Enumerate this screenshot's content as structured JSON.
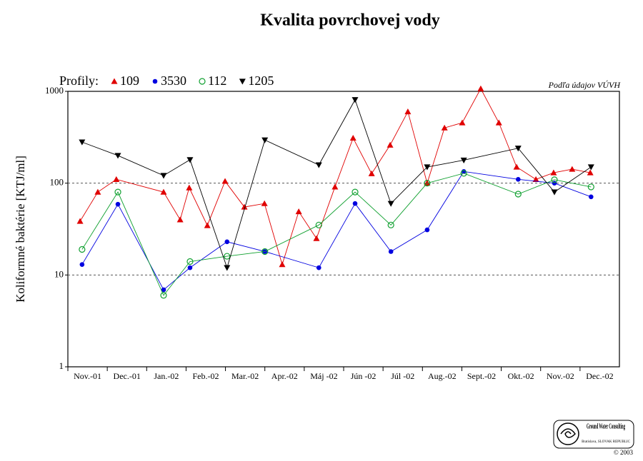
{
  "chart_data": {
    "type": "line",
    "title": "Kvalita povrchovej vody",
    "y_label": "Koliformné baktérie [KTJ/ml]",
    "legend_title": "Profily:",
    "source_note": "Podľa údajov VÚVH",
    "logo": {
      "name": "Ground Water Consulting",
      "place": "Bratislava, SLOVAK REPUBLIC",
      "copyright": "© 2003"
    },
    "categories": [
      "Nov.-01",
      "Dec.-01",
      "Jan.-02",
      "Feb.-02",
      "Mar.-02",
      "Apr.-02",
      "Máj -02",
      "Jún -02",
      "Júl -02",
      "Aug.-02",
      "Sept.-02",
      "Okt.-02",
      "Nov.-02",
      "Dec.-02"
    ],
    "xlim": [
      0,
      14
    ],
    "ylim": [
      1,
      1000
    ],
    "yticks": [
      1,
      10,
      100,
      1000
    ],
    "log_y": true,
    "grid": true,
    "series": [
      {
        "name": "109",
        "color": "#e00000",
        "marker": "triangle-up",
        "x": [
          0.31,
          0.76,
          1.23,
          2.43,
          2.85,
          3.08,
          3.54,
          3.99,
          4.48,
          4.99,
          5.44,
          5.86,
          6.31,
          6.78,
          7.24,
          7.71,
          8.18,
          8.63,
          9.12,
          9.56,
          10.01,
          10.48,
          10.94,
          11.39,
          11.88,
          12.33,
          12.8,
          13.26
        ],
        "values": [
          38.5,
          80,
          110,
          80,
          40,
          89,
          34.6,
          105,
          55,
          60,
          13,
          49,
          25,
          91,
          310,
          127,
          260,
          600,
          100,
          400,
          455,
          1070,
          455,
          150,
          110,
          130,
          142,
          130
        ]
      },
      {
        "name": "3530",
        "color": "#0000e0",
        "marker": "circle",
        "x": [
          0.36,
          1.27,
          2.43,
          3.1,
          4.04,
          5.0,
          6.37,
          7.29,
          8.2,
          9.12,
          10.05,
          11.43,
          12.35,
          13.28
        ],
        "values": [
          13,
          59,
          6.9,
          12,
          23,
          18,
          12,
          60,
          18,
          31,
          134,
          110,
          100,
          71
        ]
      },
      {
        "name": "112",
        "color": "#10a030",
        "marker": "circle-open",
        "x": [
          0.36,
          1.27,
          2.43,
          3.1,
          4.04,
          5.0,
          6.37,
          7.29,
          8.2,
          9.12,
          10.05,
          11.43,
          12.35,
          13.28
        ],
        "values": [
          19,
          80,
          6,
          14,
          16,
          18,
          35,
          80,
          35,
          100,
          128,
          76,
          109,
          91
        ]
      },
      {
        "name": "1205",
        "color": "#000000",
        "marker": "triangle-down",
        "x": [
          0.36,
          1.27,
          2.43,
          3.1,
          4.04,
          5.0,
          6.37,
          7.29,
          8.2,
          9.12,
          10.05,
          11.43,
          12.35,
          13.28
        ],
        "values": [
          280,
          200,
          121,
          180,
          12,
          295,
          158,
          810,
          60,
          150,
          178,
          240,
          80,
          150
        ]
      }
    ]
  }
}
